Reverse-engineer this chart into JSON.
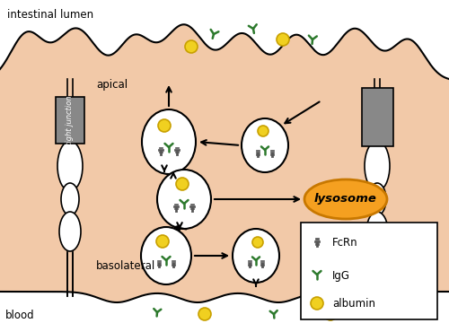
{
  "cell_color": "#f2c9a8",
  "white": "#ffffff",
  "black": "#000000",
  "gray": "#888888",
  "dark_gray": "#555555",
  "green": "#2d7a2d",
  "yellow": "#f0d020",
  "yellow_outline": "#c8a000",
  "orange": "#f5a020",
  "orange_dark": "#c87800",
  "text_intestinal": "intestinal lumen",
  "text_blood": "blood",
  "text_apical": "apical",
  "text_basolateral": "basolateral",
  "text_tight": "tight junction",
  "text_lysosome": "lysosome",
  "text_fcrn": "FcRn",
  "text_igg": "IgG",
  "text_albumin": "albumin"
}
